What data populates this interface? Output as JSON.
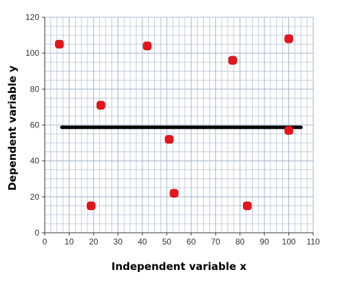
{
  "chart_data": {
    "type": "scatter",
    "xlabel": "Independent variable x",
    "ylabel": "Dependent variable y",
    "xlim": [
      0,
      110
    ],
    "ylim": [
      0,
      120
    ],
    "x_ticks": [
      0,
      10,
      20,
      30,
      40,
      50,
      60,
      70,
      80,
      90,
      100,
      110
    ],
    "y_ticks": [
      0,
      20,
      40,
      60,
      80,
      100,
      120
    ],
    "grid": true,
    "minor_grid_step_x": 2.5,
    "minor_grid_step_y": 5,
    "points": [
      {
        "x": 6,
        "y": 105
      },
      {
        "x": 19,
        "y": 15
      },
      {
        "x": 23,
        "y": 71
      },
      {
        "x": 42,
        "y": 104
      },
      {
        "x": 51,
        "y": 52
      },
      {
        "x": 53,
        "y": 22
      },
      {
        "x": 77,
        "y": 96
      },
      {
        "x": 83,
        "y": 15
      },
      {
        "x": 100,
        "y": 108
      },
      {
        "x": 100,
        "y": 57
      }
    ],
    "reference_line": {
      "y": 58.7,
      "x_start": 7,
      "x_end": 105
    },
    "colors": {
      "points": "#e8141b",
      "line": "#000000",
      "grid": "#a9b8d0",
      "axis": "#333333"
    }
  }
}
